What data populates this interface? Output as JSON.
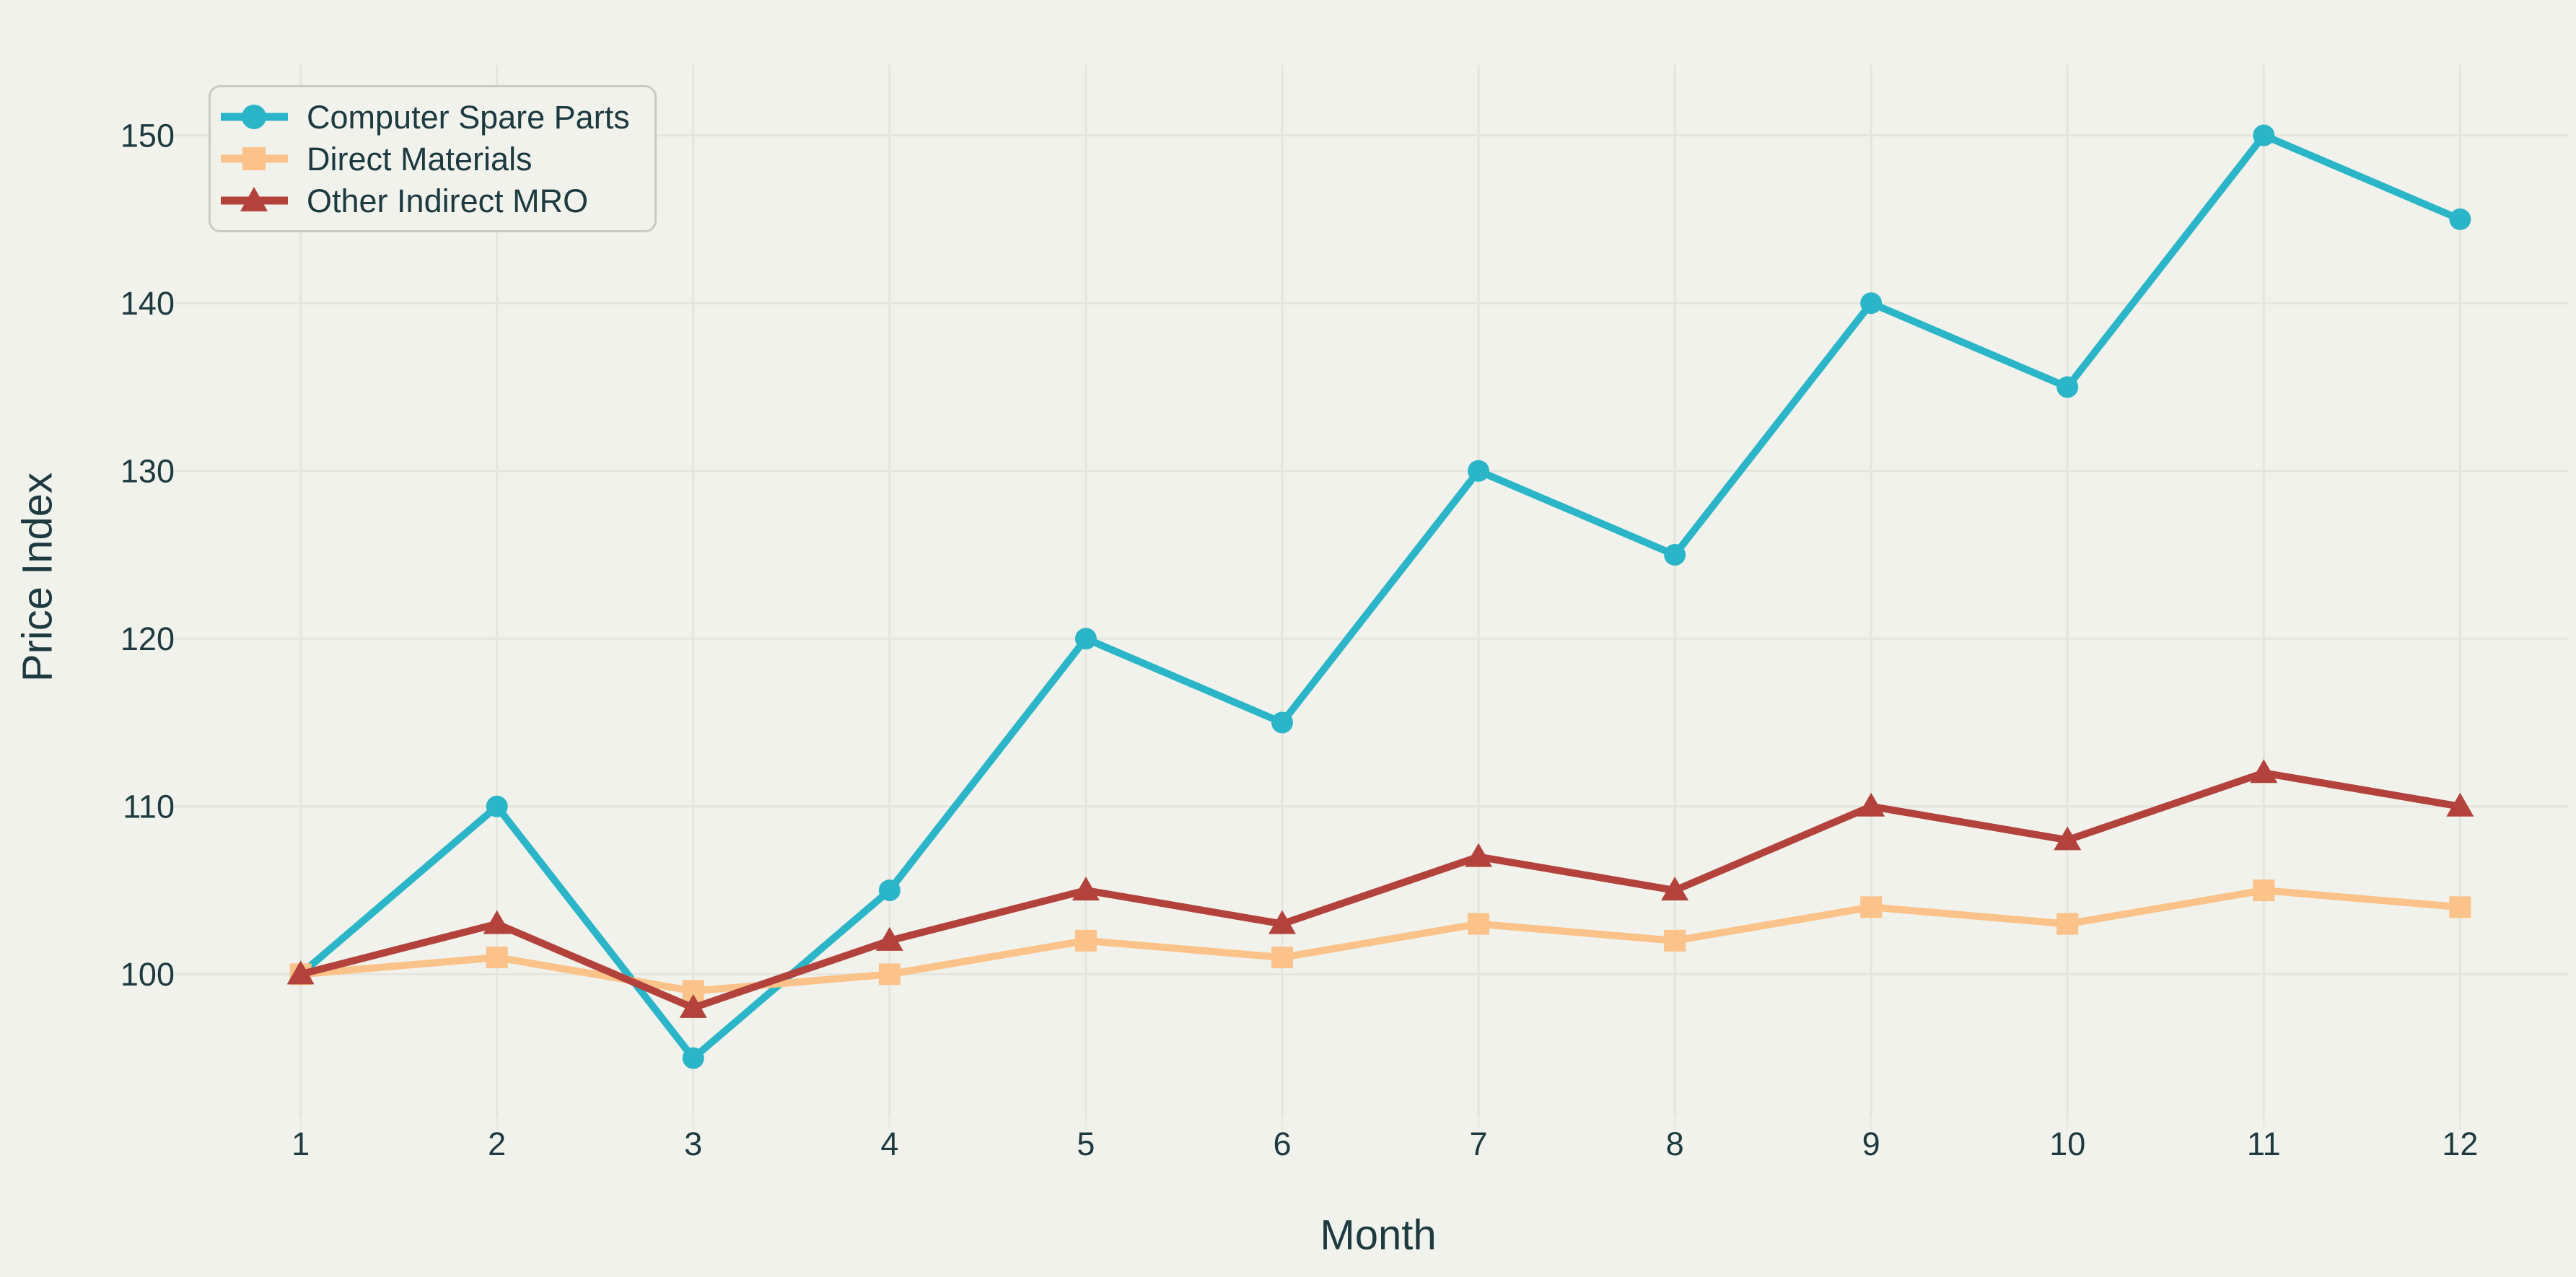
{
  "colors": {
    "background": "#f1f2ec",
    "grid": "#e4e6de",
    "minor_tick": "#eaece4",
    "text": "#1d3a40",
    "legend_border": "#c9ccc1",
    "series_teal": "#2bb5c8",
    "series_peach": "#fbc289",
    "series_red": "#b2423b"
  },
  "chart_data": {
    "type": "line",
    "title": "",
    "xlabel": "Month",
    "ylabel": "Price Index",
    "x": [
      1,
      2,
      3,
      4,
      5,
      6,
      7,
      8,
      9,
      10,
      11,
      12
    ],
    "xticks": [
      1,
      2,
      3,
      4,
      5,
      6,
      7,
      8,
      9,
      10,
      11,
      12
    ],
    "yticks": [
      100,
      110,
      120,
      130,
      140,
      150
    ],
    "xlim": [
      0.45,
      12.55
    ],
    "ylim": [
      91.5,
      154.2
    ],
    "grid": true,
    "legend_position": "upper left",
    "series": [
      {
        "name": "Computer Spare Parts",
        "marker": "circle",
        "color": "#2bb5c8",
        "values": [
          100,
          110,
          95,
          105,
          120,
          115,
          130,
          125,
          140,
          135,
          150,
          145
        ]
      },
      {
        "name": "Direct Materials",
        "marker": "square",
        "color": "#fbc289",
        "values": [
          100,
          101,
          99,
          100,
          102,
          101,
          103,
          102,
          104,
          103,
          105,
          104
        ]
      },
      {
        "name": "Other Indirect MRO",
        "marker": "triangle",
        "color": "#b2423b",
        "values": [
          100,
          103,
          98,
          102,
          105,
          103,
          107,
          105,
          110,
          108,
          112,
          110
        ]
      }
    ]
  }
}
